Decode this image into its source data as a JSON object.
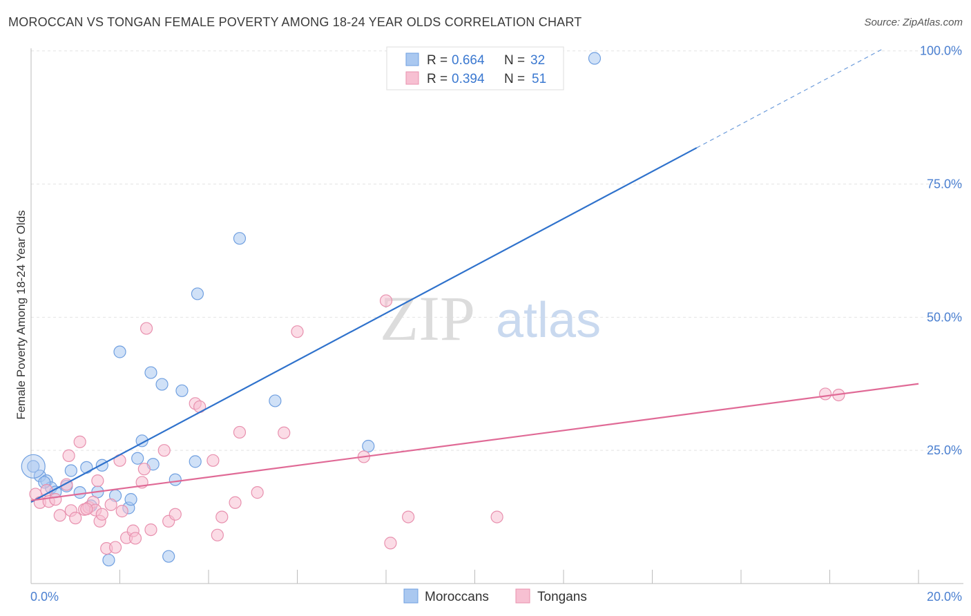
{
  "title": "MOROCCAN VS TONGAN FEMALE POVERTY AMONG 18-24 YEAR OLDS CORRELATION CHART",
  "source": "Source: ZipAtlas.com",
  "watermark": {
    "zip": "ZIP",
    "atlas": "atlas"
  },
  "legend": {
    "rows": [
      {
        "r_label": "R =",
        "r_value": "0.664",
        "n_label": "N =",
        "n_value": "32",
        "color": "#aac8f0",
        "stroke": "#6f9fe0"
      },
      {
        "r_label": "R =",
        "r_value": "0.394",
        "n_label": "N =",
        "n_value": "51",
        "color": "#f7c0d2",
        "stroke": "#e890ae"
      }
    ]
  },
  "bottom_legend": [
    {
      "label": "Moroccans",
      "color": "#aac8f0",
      "stroke": "#6f9fe0"
    },
    {
      "label": "Tongans",
      "color": "#f7c0d2",
      "stroke": "#e890ae"
    }
  ],
  "chart_data": {
    "type": "scatter",
    "xlabel": "",
    "ylabel": "Female Poverty Among 18-24 Year Olds",
    "xlim": [
      0,
      20
    ],
    "ylim": [
      0,
      101
    ],
    "x_tick_labels": [
      {
        "value": 0,
        "label": "0.0%"
      },
      {
        "value": 20,
        "label": "20.0%"
      }
    ],
    "y_tick_labels": [
      {
        "value": 25,
        "label": "25.0%"
      },
      {
        "value": 50,
        "label": "50.0%"
      },
      {
        "value": 75,
        "label": "75.0%"
      },
      {
        "value": 100,
        "label": "100.0%"
      }
    ],
    "grid": true,
    "legend_position": "top-center",
    "series": [
      {
        "name": "Moroccans",
        "color": "#aac8f0",
        "stroke": "#6f9fe0",
        "line_color": "#2f72cc",
        "trend": {
          "x0": 0,
          "y0": 15.3,
          "x1": 15,
          "y1": 81.8,
          "x_dash_end": 19.2,
          "y_dash_end": 100.4
        },
        "points": [
          [
            0.05,
            22.0
          ],
          [
            0.2,
            20.2
          ],
          [
            0.35,
            19.3
          ],
          [
            0.45,
            18.0
          ],
          [
            0.55,
            17.2
          ],
          [
            0.8,
            18.3
          ],
          [
            0.9,
            21.2
          ],
          [
            1.1,
            17.1
          ],
          [
            1.25,
            21.8
          ],
          [
            1.35,
            14.6
          ],
          [
            1.5,
            17.2
          ],
          [
            1.6,
            22.2
          ],
          [
            1.9,
            16.5
          ],
          [
            2.0,
            43.5
          ],
          [
            2.2,
            14.2
          ],
          [
            2.25,
            15.8
          ],
          [
            2.4,
            23.5
          ],
          [
            2.5,
            26.8
          ],
          [
            2.7,
            39.6
          ],
          [
            2.75,
            22.4
          ],
          [
            2.95,
            37.4
          ],
          [
            3.1,
            5.1
          ],
          [
            3.25,
            19.5
          ],
          [
            3.4,
            36.2
          ],
          [
            3.7,
            22.9
          ],
          [
            3.75,
            54.4
          ],
          [
            4.7,
            64.8
          ],
          [
            5.5,
            34.3
          ],
          [
            7.6,
            25.8
          ],
          [
            12.7,
            98.6
          ],
          [
            1.75,
            4.4
          ],
          [
            0.3,
            19.0
          ]
        ]
      },
      {
        "name": "Tongans",
        "color": "#f7c0d2",
        "stroke": "#e890ae",
        "line_color": "#e06a96",
        "trend": {
          "x0": 0,
          "y0": 15.6,
          "x1": 20,
          "y1": 37.5
        },
        "points": [
          [
            0.1,
            16.8
          ],
          [
            0.2,
            15.2
          ],
          [
            0.35,
            17.5
          ],
          [
            0.4,
            15.4
          ],
          [
            0.55,
            15.8
          ],
          [
            0.65,
            12.8
          ],
          [
            0.8,
            18.6
          ],
          [
            0.85,
            24.0
          ],
          [
            0.9,
            13.7
          ],
          [
            1.0,
            12.3
          ],
          [
            1.1,
            26.6
          ],
          [
            1.2,
            13.9
          ],
          [
            1.3,
            14.3
          ],
          [
            1.4,
            15.3
          ],
          [
            1.45,
            13.8
          ],
          [
            1.5,
            19.3
          ],
          [
            1.55,
            11.7
          ],
          [
            1.6,
            13.0
          ],
          [
            1.7,
            6.6
          ],
          [
            1.8,
            14.8
          ],
          [
            1.9,
            6.8
          ],
          [
            2.0,
            23.1
          ],
          [
            2.05,
            13.6
          ],
          [
            2.15,
            8.6
          ],
          [
            2.3,
            9.9
          ],
          [
            2.35,
            8.5
          ],
          [
            2.5,
            19.0
          ],
          [
            2.55,
            21.5
          ],
          [
            2.6,
            47.9
          ],
          [
            2.7,
            10.1
          ],
          [
            3.0,
            25.0
          ],
          [
            3.1,
            11.7
          ],
          [
            3.25,
            13.0
          ],
          [
            3.7,
            33.8
          ],
          [
            3.8,
            33.2
          ],
          [
            4.1,
            23.1
          ],
          [
            4.2,
            9.1
          ],
          [
            4.3,
            12.5
          ],
          [
            4.6,
            15.2
          ],
          [
            4.7,
            28.4
          ],
          [
            5.1,
            17.1
          ],
          [
            5.7,
            28.3
          ],
          [
            6.0,
            47.3
          ],
          [
            7.5,
            23.8
          ],
          [
            8.0,
            53.1
          ],
          [
            8.1,
            7.6
          ],
          [
            8.5,
            12.5
          ],
          [
            10.5,
            12.5
          ],
          [
            17.9,
            35.6
          ],
          [
            18.2,
            35.4
          ],
          [
            1.25,
            14.0
          ]
        ]
      }
    ]
  }
}
